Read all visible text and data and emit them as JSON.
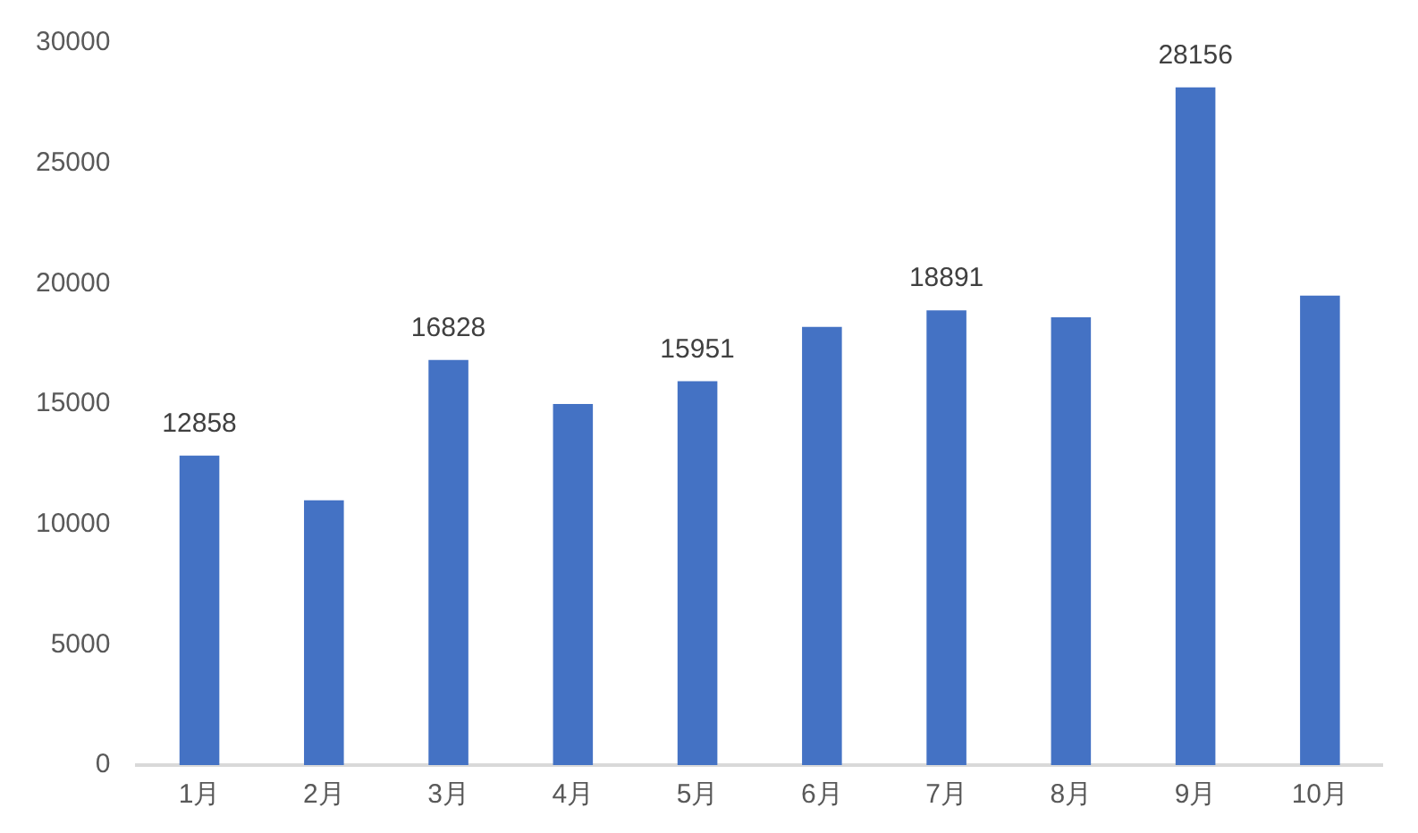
{
  "chart_data": {
    "type": "bar",
    "categories": [
      "1月",
      "2月",
      "3月",
      "4月",
      "5月",
      "6月",
      "7月",
      "8月",
      "9月",
      "10月"
    ],
    "values": [
      12858,
      11000,
      16828,
      15000,
      15951,
      18200,
      18891,
      18600,
      28156,
      19500
    ],
    "value_labels": [
      "12858",
      null,
      "16828",
      null,
      "15951",
      null,
      "18891",
      null,
      "28156",
      null
    ],
    "color": "#4472c4",
    "ylim": [
      0,
      30000
    ],
    "yticks": [
      0,
      5000,
      10000,
      15000,
      20000,
      25000,
      30000
    ],
    "grid": false,
    "legend": false
  }
}
